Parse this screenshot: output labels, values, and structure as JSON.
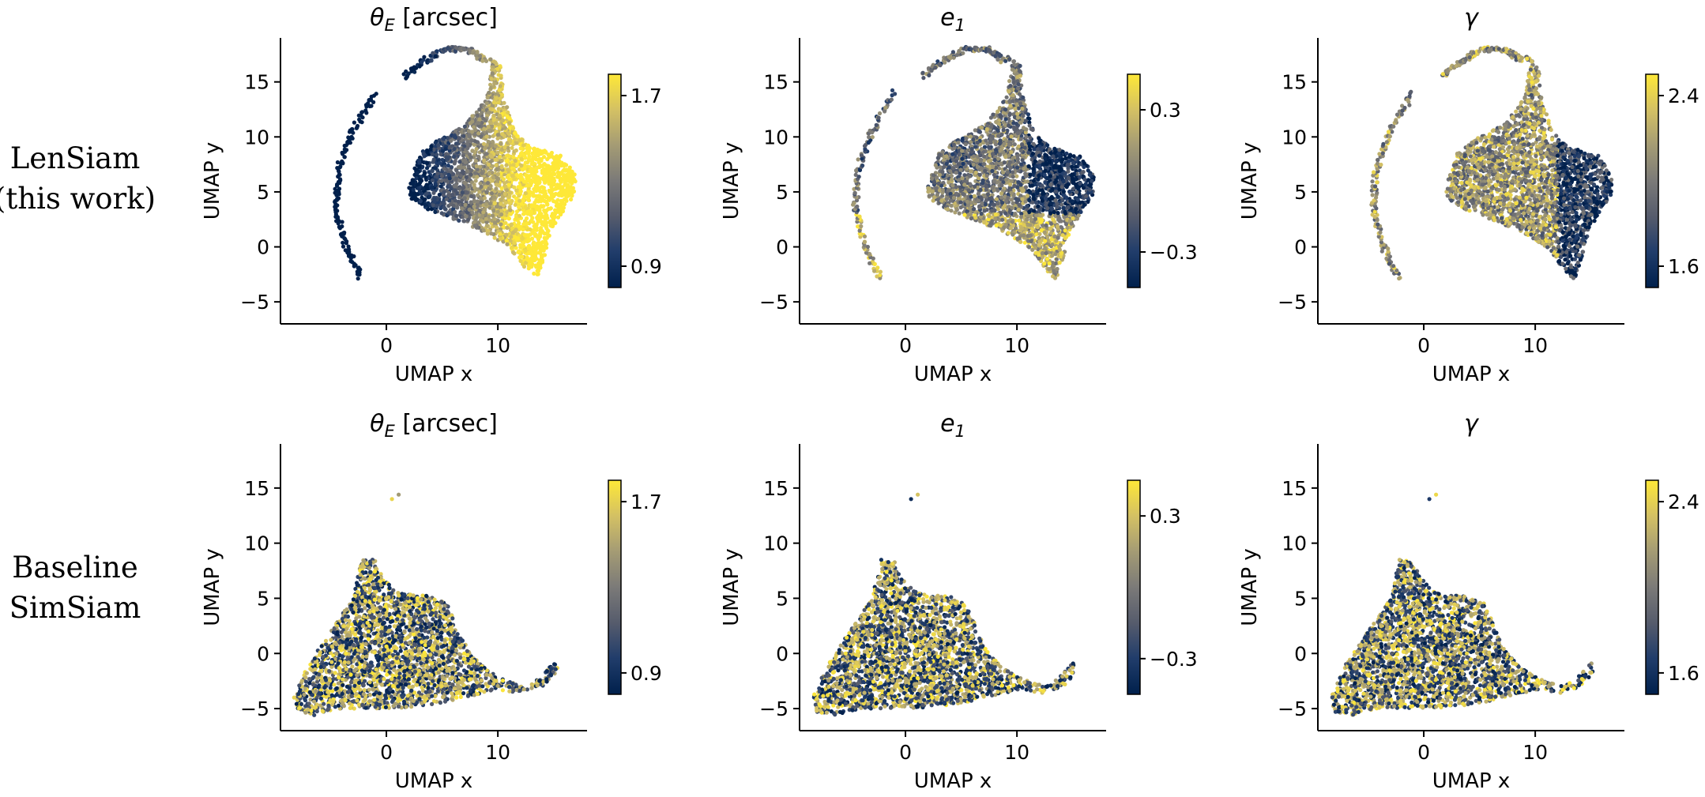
{
  "figure": {
    "row_labels": [
      [
        "LenSiam",
        "(this work)"
      ],
      [
        "Baseline",
        "SimSiam"
      ]
    ]
  },
  "colormap": {
    "name": "cividis",
    "stops": [
      "#00204c",
      "#213d6b",
      "#555b6c",
      "#7b7a78",
      "#a59c74",
      "#d3c064",
      "#fee838"
    ]
  },
  "chart_data": [
    {
      "type": "scatter",
      "model": "LenSiam",
      "title": "θE [arcsec]",
      "title_math": {
        "base": "θ",
        "sub": "E",
        "rest": " [arcsec]"
      },
      "xlabel": "UMAP x",
      "ylabel": "UMAP y",
      "xlim": [
        -9.5,
        18
      ],
      "ylim": [
        -7,
        19
      ],
      "xticks": [
        0,
        10
      ],
      "yticks": [
        -5,
        0,
        5,
        10,
        15
      ],
      "colorbar": {
        "range": [
          0.8,
          1.8
        ],
        "ticks": [
          0.9,
          1.7
        ],
        "tick_labels": [
          "0.9",
          "1.7"
        ]
      },
      "series": [
        {
          "pattern": "lensiam-theta"
        }
      ]
    },
    {
      "type": "scatter",
      "model": "LenSiam",
      "title": "e1",
      "title_math": {
        "base": "e",
        "sub": "1",
        "rest": ""
      },
      "xlabel": "UMAP x",
      "ylabel": "UMAP y",
      "xlim": [
        -9.5,
        18
      ],
      "ylim": [
        -7,
        19
      ],
      "xticks": [
        0,
        10
      ],
      "yticks": [
        -5,
        0,
        5,
        10,
        15
      ],
      "colorbar": {
        "range": [
          -0.45,
          0.45
        ],
        "ticks": [
          -0.3,
          0.3
        ],
        "tick_labels": [
          "−0.3",
          "0.3"
        ]
      },
      "series": [
        {
          "pattern": "lensiam-e1"
        }
      ]
    },
    {
      "type": "scatter",
      "model": "LenSiam",
      "title": "γ",
      "title_math": {
        "base": "γ",
        "sub": "",
        "rest": ""
      },
      "xlabel": "UMAP x",
      "ylabel": "UMAP y",
      "xlim": [
        -9.5,
        18
      ],
      "ylim": [
        -7,
        19
      ],
      "xticks": [
        0,
        10
      ],
      "yticks": [
        -5,
        0,
        5,
        10,
        15
      ],
      "colorbar": {
        "range": [
          1.5,
          2.5
        ],
        "ticks": [
          1.6,
          2.4
        ],
        "tick_labels": [
          "1.6",
          "2.4"
        ]
      },
      "series": [
        {
          "pattern": "lensiam-gamma"
        }
      ]
    },
    {
      "type": "scatter",
      "model": "Baseline SimSiam",
      "title": "θE [arcsec]",
      "title_math": {
        "base": "θ",
        "sub": "E",
        "rest": " [arcsec]"
      },
      "xlabel": "UMAP x",
      "ylabel": "UMAP y",
      "xlim": [
        -9.5,
        18
      ],
      "ylim": [
        -7,
        19
      ],
      "xticks": [
        0,
        10
      ],
      "yticks": [
        -5,
        0,
        5,
        10,
        15
      ],
      "colorbar": {
        "range": [
          0.8,
          1.8
        ],
        "ticks": [
          0.9,
          1.7
        ],
        "tick_labels": [
          "0.9",
          "1.7"
        ]
      },
      "series": [
        {
          "pattern": "simsiam-random"
        }
      ]
    },
    {
      "type": "scatter",
      "model": "Baseline SimSiam",
      "title": "e1",
      "title_math": {
        "base": "e",
        "sub": "1",
        "rest": ""
      },
      "xlabel": "UMAP x",
      "ylabel": "UMAP y",
      "xlim": [
        -9.5,
        18
      ],
      "ylim": [
        -7,
        19
      ],
      "xticks": [
        0,
        10
      ],
      "yticks": [
        -5,
        0,
        5,
        10,
        15
      ],
      "colorbar": {
        "range": [
          -0.45,
          0.45
        ],
        "ticks": [
          -0.3,
          0.3
        ],
        "tick_labels": [
          "−0.3",
          "0.3"
        ]
      },
      "series": [
        {
          "pattern": "simsiam-random"
        }
      ]
    },
    {
      "type": "scatter",
      "model": "Baseline SimSiam",
      "title": "γ",
      "title_math": {
        "base": "γ",
        "sub": "",
        "rest": ""
      },
      "xlabel": "UMAP x",
      "ylabel": "UMAP y",
      "xlim": [
        -9.5,
        18
      ],
      "ylim": [
        -7,
        19
      ],
      "xticks": [
        0,
        10
      ],
      "yticks": [
        -5,
        0,
        5,
        10,
        15
      ],
      "colorbar": {
        "range": [
          1.5,
          2.5
        ],
        "ticks": [
          1.6,
          2.4
        ],
        "tick_labels": [
          "1.6",
          "2.4"
        ]
      },
      "series": [
        {
          "pattern": "simsiam-random"
        }
      ]
    }
  ]
}
